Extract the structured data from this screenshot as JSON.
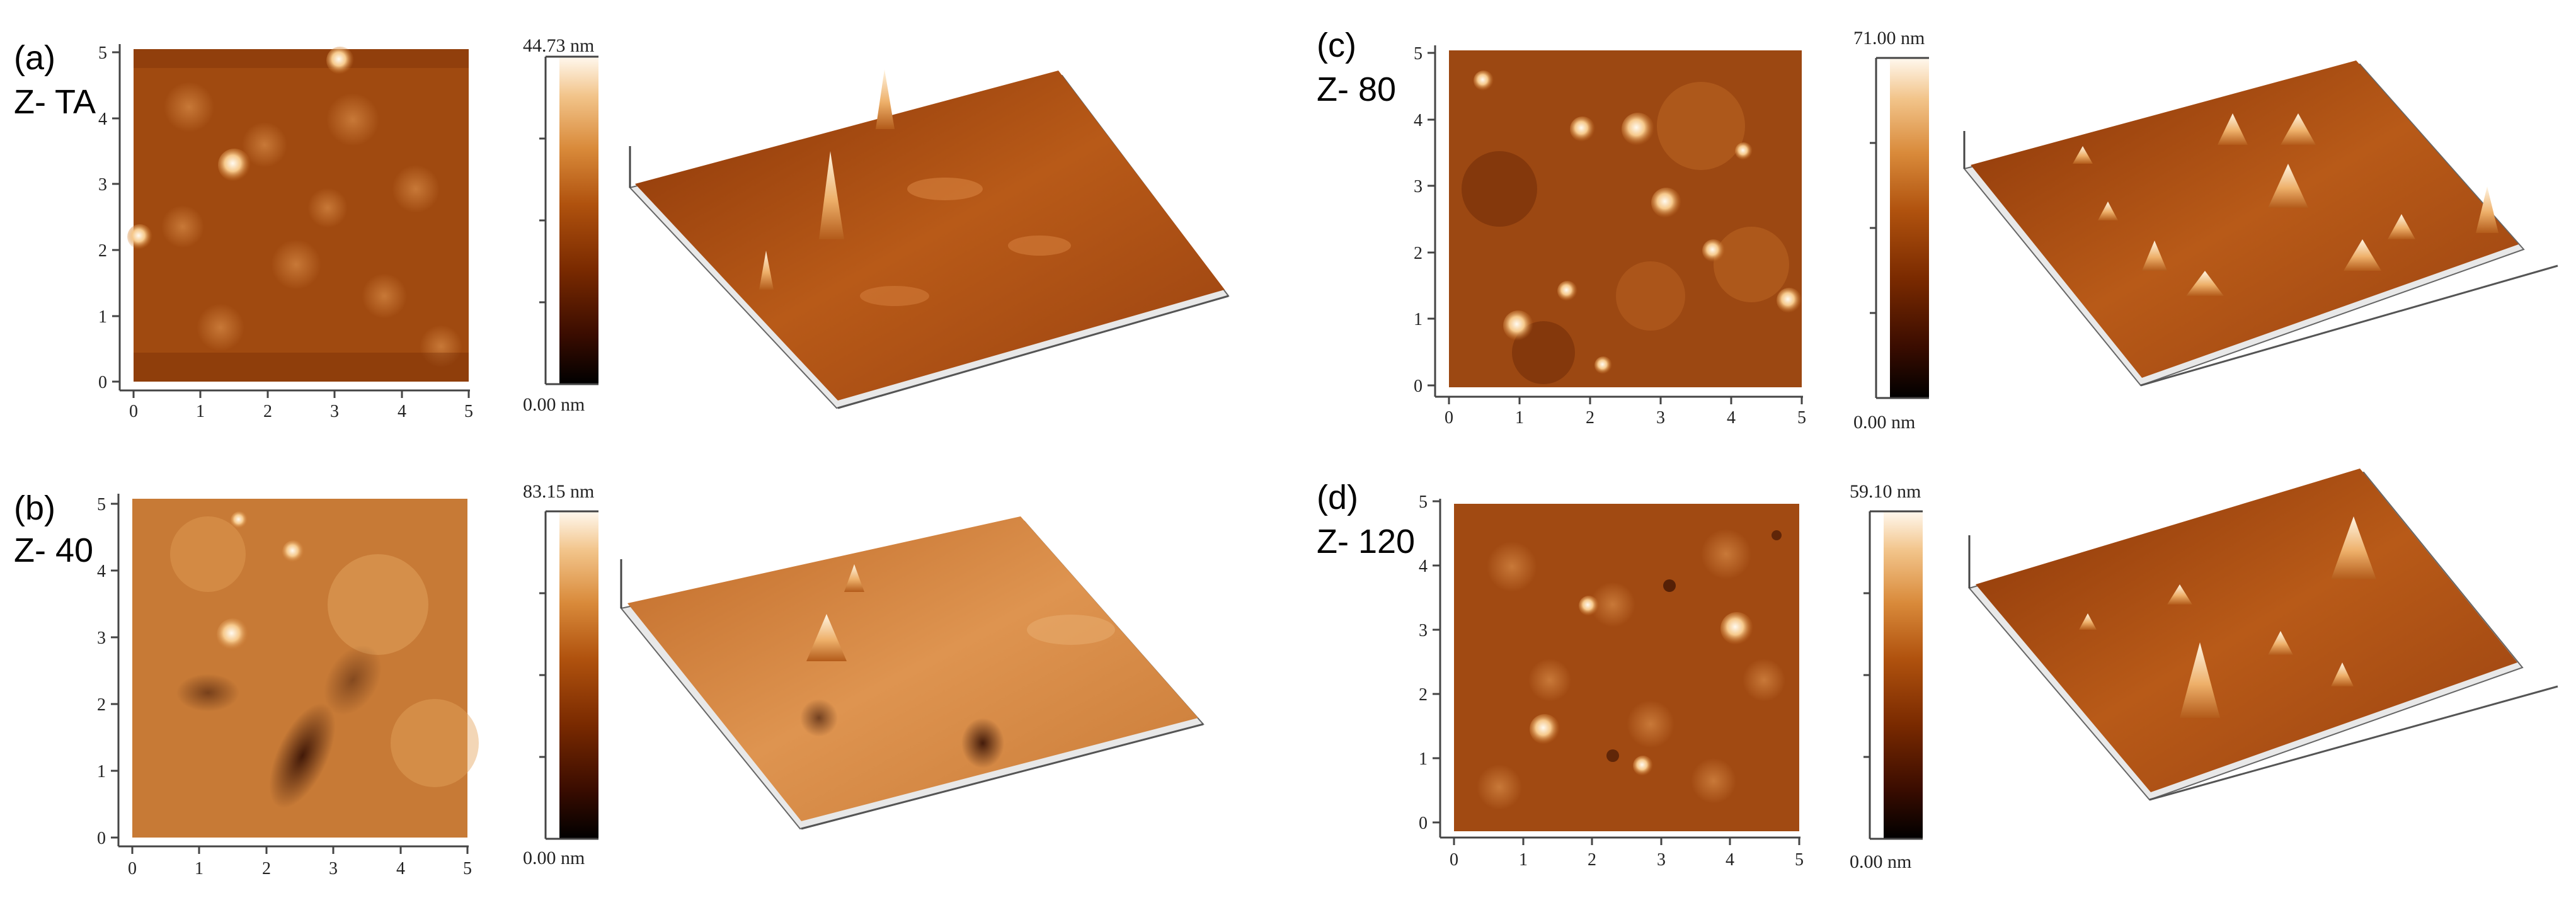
{
  "panels": {
    "a": {
      "label": "(a)",
      "sample": "Z- TA",
      "scale_max": "44.73 nm",
      "scale_min": "0.00 nm"
    },
    "b": {
      "label": "(b)",
      "sample": "Z- 40",
      "scale_max": "83.15 nm",
      "scale_min": "0.00 nm"
    },
    "c": {
      "label": "(c)",
      "sample": "Z- 80",
      "scale_max": "71.00 nm",
      "scale_min": "0.00 nm"
    },
    "d": {
      "label": "(d)",
      "sample": "Z- 120",
      "scale_max": "59.10 nm",
      "scale_min": "0.00 nm"
    }
  },
  "axis_ticks": [
    "0",
    "1",
    "2",
    "3",
    "4",
    "5"
  ],
  "colormap": [
    "#000000",
    "#3a0c00",
    "#7a2a00",
    "#b0520e",
    "#d98a3a",
    "#f2c48a",
    "#fff8ee"
  ]
}
